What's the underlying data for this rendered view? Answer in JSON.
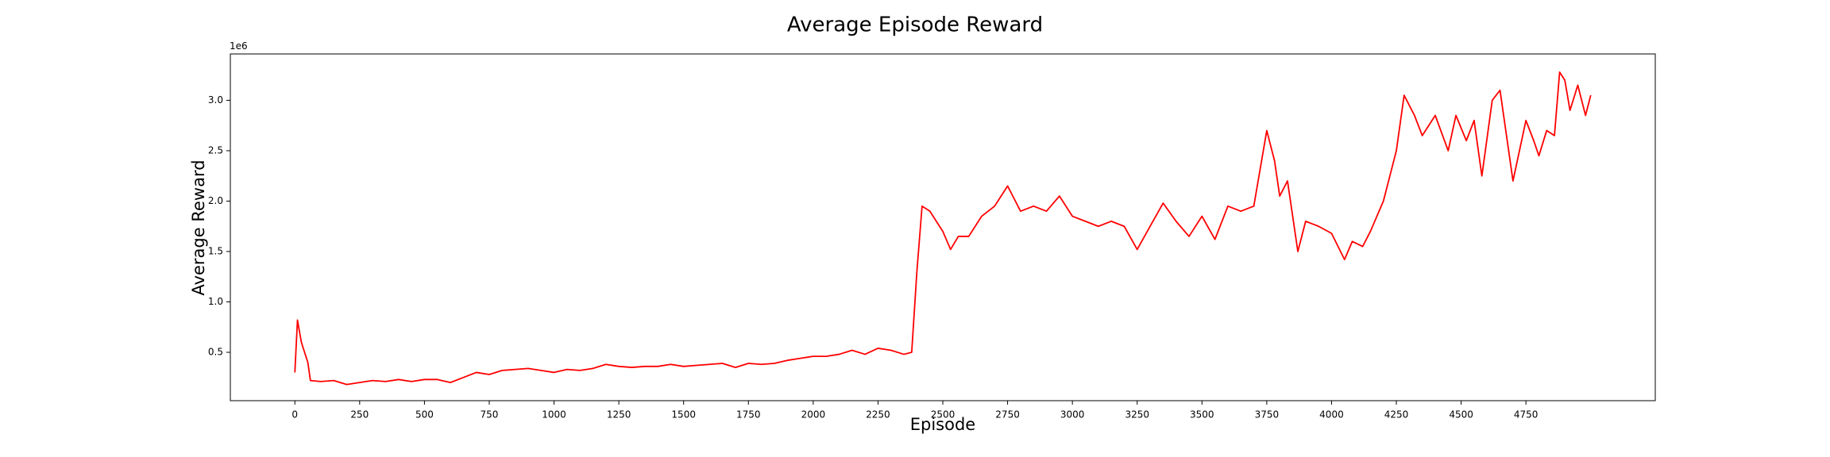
{
  "chart_data": {
    "type": "line",
    "title": "Average Episode Reward",
    "x_label": "Episode",
    "y_label": "Average Reward",
    "y_offset_label": "1e6",
    "x": [
      0,
      10,
      25,
      50,
      60,
      100,
      150,
      200,
      250,
      300,
      350,
      400,
      450,
      500,
      550,
      600,
      650,
      700,
      750,
      800,
      850,
      900,
      950,
      1000,
      1050,
      1100,
      1150,
      1200,
      1250,
      1300,
      1350,
      1400,
      1450,
      1500,
      1550,
      1600,
      1650,
      1700,
      1750,
      1800,
      1850,
      1900,
      1950,
      2000,
      2050,
      2100,
      2150,
      2200,
      2250,
      2300,
      2350,
      2380,
      2400,
      2420,
      2450,
      2500,
      2530,
      2560,
      2600,
      2650,
      2700,
      2750,
      2800,
      2850,
      2900,
      2950,
      3000,
      3050,
      3100,
      3150,
      3200,
      3250,
      3300,
      3350,
      3400,
      3450,
      3500,
      3550,
      3600,
      3650,
      3700,
      3750,
      3780,
      3800,
      3830,
      3870,
      3900,
      3950,
      4000,
      4050,
      4080,
      4120,
      4150,
      4200,
      4250,
      4280,
      4320,
      4350,
      4400,
      4450,
      4480,
      4520,
      4550,
      4580,
      4620,
      4650,
      4700,
      4750,
      4780,
      4800,
      4830,
      4860,
      4880,
      4900,
      4920,
      4950,
      4980,
      5000
    ],
    "series": [
      {
        "name": "Average Reward",
        "color": "#ff0000",
        "values": [
          0.3,
          0.82,
          0.6,
          0.4,
          0.22,
          0.21,
          0.22,
          0.18,
          0.2,
          0.22,
          0.21,
          0.23,
          0.21,
          0.23,
          0.23,
          0.2,
          0.25,
          0.3,
          0.28,
          0.32,
          0.33,
          0.34,
          0.32,
          0.3,
          0.33,
          0.32,
          0.34,
          0.38,
          0.36,
          0.35,
          0.36,
          0.36,
          0.38,
          0.36,
          0.37,
          0.38,
          0.39,
          0.35,
          0.39,
          0.38,
          0.39,
          0.42,
          0.44,
          0.46,
          0.46,
          0.48,
          0.52,
          0.48,
          0.54,
          0.52,
          0.48,
          0.5,
          1.3,
          1.95,
          1.9,
          1.7,
          1.52,
          1.65,
          1.65,
          1.85,
          1.95,
          2.15,
          1.9,
          1.95,
          1.9,
          2.05,
          1.85,
          1.8,
          1.75,
          1.8,
          1.75,
          1.52,
          1.75,
          1.98,
          1.8,
          1.65,
          1.85,
          1.62,
          1.95,
          1.9,
          1.95,
          2.7,
          2.4,
          2.05,
          2.2,
          1.5,
          1.8,
          1.75,
          1.68,
          1.42,
          1.6,
          1.55,
          1.7,
          2.0,
          2.5,
          3.05,
          2.85,
          2.65,
          2.85,
          2.5,
          2.85,
          2.6,
          2.8,
          2.25,
          3.0,
          3.1,
          2.2,
          2.8,
          2.6,
          2.45,
          2.7,
          2.65,
          3.28,
          3.2,
          2.9,
          3.15,
          2.85,
          3.05
        ]
      }
    ],
    "xlim": [
      -249,
      5249
    ],
    "ylim": [
      0.02,
      3.46
    ],
    "xticks": [
      0,
      250,
      500,
      750,
      1000,
      1250,
      1500,
      1750,
      2000,
      2250,
      2500,
      2750,
      3000,
      3250,
      3500,
      3750,
      4000,
      4250,
      4500,
      4750
    ],
    "yticks": [
      0.5,
      {
        "value": 1,
        "label": "1.0"
      },
      1.5,
      {
        "value": 2,
        "label": "2.0"
      },
      2.5,
      {
        "value": 3,
        "label": "3.0"
      }
    ],
    "grid": false
  }
}
